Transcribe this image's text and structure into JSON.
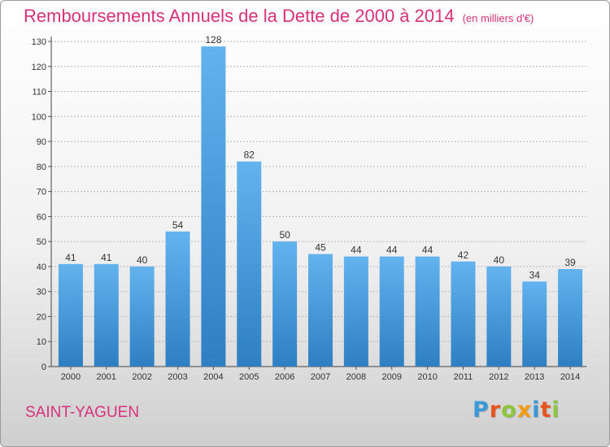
{
  "header": {
    "title": "Remboursements Annuels de la Dette de 2000 à 2014",
    "subtitle": "(en milliers d'€)"
  },
  "footer": {
    "commune": "SAINT-YAGUEN",
    "brand_letters": [
      {
        "char": "P",
        "color": "#3a9ad9"
      },
      {
        "char": "r",
        "color": "#e8541e"
      },
      {
        "char": "o",
        "color": "#8cc63f"
      },
      {
        "char": "x",
        "color": "#f39c12"
      },
      {
        "char": "i",
        "color": "#3a9ad9"
      },
      {
        "char": "t",
        "color": "#e8541e"
      },
      {
        "char": "i",
        "color": "#8cc63f"
      }
    ]
  },
  "colors": {
    "title": "#d9307a",
    "bar_top": "#62b3ee",
    "bar_bottom": "#2e7fc3",
    "grid": "#b8b8b8",
    "text": "#333333"
  },
  "chart_data": {
    "type": "bar",
    "title": "Remboursements Annuels de la Dette de 2000 à 2014",
    "subtitle": "(en milliers d'€)",
    "categories": [
      "2000",
      "2001",
      "2002",
      "2003",
      "2004",
      "2005",
      "2006",
      "2007",
      "2008",
      "2009",
      "2010",
      "2011",
      "2012",
      "2013",
      "2014"
    ],
    "values": [
      41,
      41,
      40,
      54,
      128,
      82,
      50,
      45,
      44,
      44,
      44,
      42,
      40,
      34,
      39
    ],
    "ylim": [
      0,
      130
    ],
    "yticks": [
      0,
      10,
      20,
      30,
      40,
      50,
      60,
      70,
      80,
      90,
      100,
      110,
      120,
      130
    ],
    "grid": true,
    "data_labels": true
  }
}
